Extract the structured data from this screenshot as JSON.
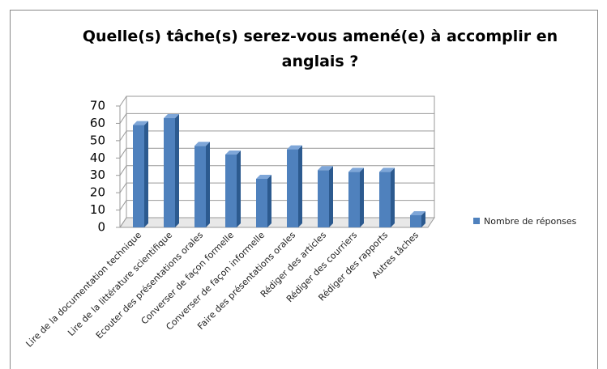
{
  "chart_data": {
    "type": "bar",
    "title": "Quelle(s) tâche(s) serez-vous amené(e) à accomplir en anglais ?",
    "categories": [
      "Lire de la documentation technique",
      "Lire de la littérature scientifique",
      "Ecouter des présentations orales",
      "Converser de façon formelle",
      "Converser de façon informelle",
      "Faire des présentations orales",
      "Rédiger des articles",
      "Rédiger des courriers",
      "Rédiger des rapports",
      "Autres tâches"
    ],
    "series": [
      {
        "name": "Nombre de réponses",
        "color": "#4f81bd",
        "values": [
          59,
          63,
          47,
          42,
          28,
          45,
          33,
          32,
          32,
          7
        ]
      }
    ],
    "ylim": [
      0,
      70
    ],
    "yticks": [
      0,
      10,
      20,
      30,
      40,
      50,
      60,
      70
    ],
    "grid": true,
    "legend": "right"
  }
}
